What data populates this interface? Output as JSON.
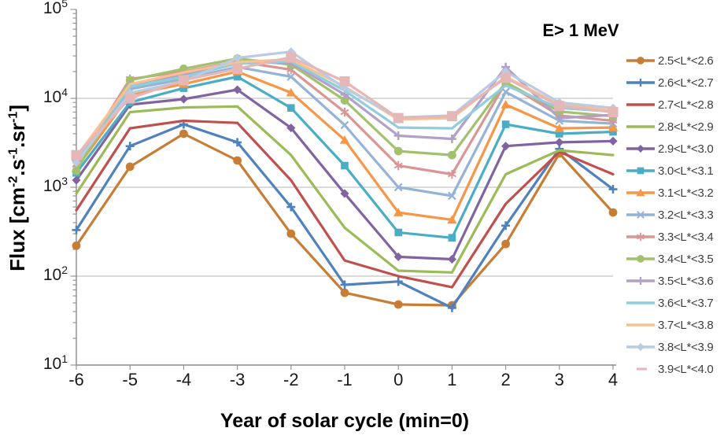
{
  "annotation": "E> 1 MeV",
  "chart_data": {
    "type": "line",
    "title": "",
    "xlabel": "Year of solar cycle (min=0)",
    "ylabel_plain": "Flux [cm-2.s-1.sr-1]",
    "ylabel_parts": [
      {
        "t": "Flux [cm"
      },
      {
        "t": "-2",
        "sup": true
      },
      {
        "t": ".s"
      },
      {
        "t": "-1",
        "sup": true
      },
      {
        "t": ".sr"
      },
      {
        "t": "-1",
        "sup": true
      },
      {
        "t": "]"
      }
    ],
    "x": [
      -6,
      -5,
      -4,
      -3,
      -2,
      -1,
      0,
      1,
      2,
      3,
      4
    ],
    "x_tick_labels": [
      "-6",
      "-5",
      "-4",
      "-3",
      "-2",
      "-1",
      "0",
      "1",
      "2",
      "3",
      "4"
    ],
    "y_scale": "log",
    "ylim_exponents": [
      1,
      5
    ],
    "y_ticks": [
      {
        "base": "10",
        "exp": "5"
      },
      {
        "base": "10",
        "exp": "4"
      },
      {
        "base": "10",
        "exp": "3"
      },
      {
        "base": "10",
        "exp": "2"
      },
      {
        "base": "10",
        "exp": "1"
      }
    ],
    "grid": "horizontal-major",
    "legend_position": "right",
    "axis_color": "#8c8c8c",
    "grid_color": "#c3c3c3",
    "series": [
      {
        "name": "2.5<L*<2.6",
        "color": "#C87D35",
        "marker": "circle",
        "legend_glyph": "line-marker",
        "values": [
          220,
          1700,
          4000,
          2000,
          300,
          65,
          48,
          47,
          230,
          2400,
          520
        ]
      },
      {
        "name": "2.6<L*<2.7",
        "color": "#4F81BD",
        "marker": "plus",
        "legend_glyph": "line-marker",
        "values": [
          330,
          2900,
          5100,
          3200,
          600,
          80,
          87,
          44,
          370,
          2700,
          950
        ]
      },
      {
        "name": "2.7<L*<2.8",
        "color": "#C0504D",
        "marker": "none",
        "legend_glyph": "line-marker",
        "values": [
          550,
          4600,
          5600,
          5300,
          1200,
          150,
          100,
          75,
          650,
          2500,
          1400
        ]
      },
      {
        "name": "2.8<L*<2.9",
        "color": "#9BBB59",
        "marker": "none",
        "legend_glyph": "line-marker",
        "values": [
          850,
          7000,
          7900,
          8100,
          2300,
          350,
          115,
          110,
          1400,
          2600,
          2300
        ]
      },
      {
        "name": "2.9<L*<3.0",
        "color": "#8064A2",
        "marker": "diamond",
        "legend_glyph": "line-marker",
        "values": [
          1200,
          8500,
          9800,
          12500,
          4650,
          850,
          165,
          155,
          2900,
          3200,
          3300
        ]
      },
      {
        "name": "3.0<L*<3.1",
        "color": "#4BACC6",
        "marker": "square",
        "legend_glyph": "line-marker",
        "values": [
          1450,
          9000,
          13000,
          17500,
          7800,
          1750,
          310,
          270,
          5100,
          4000,
          4200
        ]
      },
      {
        "name": "3.1<L*<3.2",
        "color": "#F79646",
        "marker": "triangle",
        "legend_glyph": "line-marker",
        "values": [
          1620,
          11000,
          14500,
          20000,
          11600,
          3400,
          520,
          430,
          8500,
          4600,
          4700
        ]
      },
      {
        "name": "3.2<L*<3.3",
        "color": "#95B3D7",
        "marker": "x",
        "legend_glyph": "line-marker",
        "values": [
          1850,
          12700,
          16500,
          22500,
          17500,
          5000,
          1000,
          800,
          11800,
          5600,
          5200
        ]
      },
      {
        "name": "3.3<L*<3.4",
        "color": "#D99694",
        "marker": "asterisk",
        "legend_glyph": "line-marker",
        "values": [
          1800,
          16500,
          20000,
          26000,
          21000,
          7000,
          1750,
          1400,
          15000,
          6400,
          5600
        ]
      },
      {
        "name": "3.4<L*<3.5",
        "color": "#A3C16D",
        "marker": "circle",
        "legend_glyph": "line-marker",
        "values": [
          1530,
          16000,
          21500,
          28000,
          24000,
          9500,
          2550,
          2300,
          15200,
          7100,
          6300
        ]
      },
      {
        "name": "3.5<L*<3.6",
        "color": "#B2A1C7",
        "marker": "plus",
        "legend_glyph": "line-marker",
        "values": [
          2000,
          14000,
          18500,
          25500,
          25000,
          11000,
          3800,
          3500,
          22500,
          6000,
          6500
        ]
      },
      {
        "name": "3.6<L*<3.7",
        "color": "#92CDDC",
        "marker": "none",
        "legend_glyph": "line-marker",
        "values": [
          2100,
          13500,
          17500,
          24500,
          26000,
          12200,
          4700,
          4600,
          14000,
          7800,
          7100
        ]
      },
      {
        "name": "3.7<L*<3.8",
        "color": "#FAC08F",
        "marker": "none",
        "legend_glyph": "line-marker",
        "values": [
          2200,
          14400,
          19500,
          25500,
          27500,
          13500,
          5800,
          6000,
          17500,
          8500,
          7400
        ]
      },
      {
        "name": "3.8<L*<3.9",
        "color": "#B8CCE4",
        "marker": "diamond",
        "legend_glyph": "line-marker",
        "values": [
          1900,
          11500,
          15500,
          28500,
          33500,
          13000,
          6100,
          6400,
          20000,
          9000,
          7800
        ]
      },
      {
        "name": "3.9<L*<4.0",
        "color": "#E5B8B7",
        "marker": "bigsquare",
        "legend_glyph": "dash",
        "values": [
          2300,
          10000,
          16000,
          21500,
          29000,
          15500,
          6000,
          6300,
          17000,
          8200,
          7000
        ]
      }
    ]
  }
}
